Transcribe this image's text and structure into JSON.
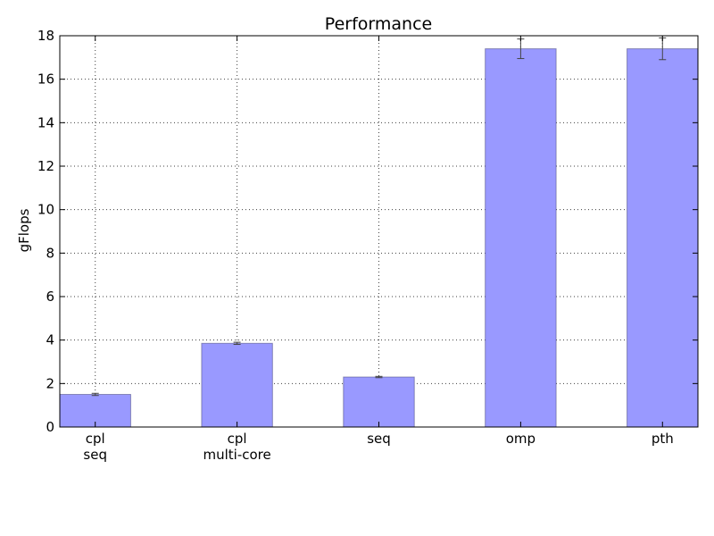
{
  "chart_data": {
    "type": "bar",
    "title": "Performance",
    "xlabel": "",
    "ylabel": "gFlops",
    "ylim": [
      0,
      18
    ],
    "yticks": [
      0,
      2,
      4,
      6,
      8,
      10,
      12,
      14,
      16,
      18
    ],
    "grid": true,
    "categories": [
      [
        "cpl",
        "seq"
      ],
      [
        "cpl",
        "multi-core"
      ],
      [
        "seq"
      ],
      [
        "omp"
      ],
      [
        "pth"
      ]
    ],
    "values": [
      1.5,
      3.85,
      2.3,
      17.4,
      17.4
    ],
    "errors": [
      0.05,
      0.05,
      0.03,
      0.45,
      0.5
    ],
    "bar_color": "#9999ff",
    "bar_edge_color": "#4a4a80"
  }
}
